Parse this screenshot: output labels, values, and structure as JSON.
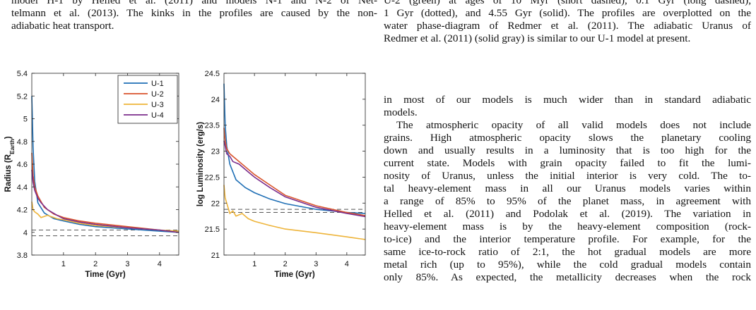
{
  "caption_left": {
    "lines": [
      "model H-1 by Helled et al. (2011) and models N-1 and N-2 of Net-",
      "telmann et al. (2013). The kinks in the profiles are caused by the non-",
      "adiabatic heat transport."
    ]
  },
  "caption_right": {
    "lines": [
      "U-2 (green) at ages of 10 Myr (short dashed), 0.1 Gyr (long dashed),",
      "1 Gyr (dotted), and 4.55 Gyr (solid). The profiles are overplotted on the",
      "water phase-diagram of Redmer et al. (2011). The adiabatic Uranus of",
      "Redmer et al. (2011) (solid gray) is similar to our U-1 model at present."
    ]
  },
  "body_right": {
    "lines": [
      "in most of our models is much wider than in standard adiabatic",
      "models.",
      "The atmospheric opacity of all valid models does not include",
      "grains. High atmospheric opacity slows the planetary cooling",
      "down and usually results in a luminosity that is too high for the",
      "current state. Models with grain opacity failed to fit the lumi-",
      "nosity of Uranus, unless the initial interior is very cold. The to-",
      "tal heavy-element mass in all our Uranus models varies within",
      "a range of 85% to 95% of the planet mass, in agreement with",
      "Helled et al. (2011) and Podolak et al. (2019). The variation in",
      "heavy-element mass is by the heavy-element composition (rock-",
      "to-ice) and the interior temperature profile. For example, for the",
      "same ice-to-rock ratio of 2:1, the hot gradual models are more",
      "metal rich (up to 95%), while the cold gradual models contain",
      "only 85%. As expected, the metallicity decreases when the rock"
    ]
  },
  "colors": {
    "U-1": "#1f6fb5",
    "U-2": "#d9532b",
    "U-3": "#eeb43a",
    "U-4": "#7b2d8c",
    "reference": "#555555"
  },
  "chart_data": [
    {
      "type": "line",
      "xlabel": "Time (Gyr)",
      "ylabel_main": "Radius (R",
      "ylabel_sub": "Earth",
      "ylabel_close": ")",
      "xlim": [
        0.01,
        4.6
      ],
      "ylim": [
        3.8,
        5.4
      ],
      "xticks": [
        "1",
        "2",
        "3",
        "4"
      ],
      "xtick_values": [
        1,
        2,
        3,
        4
      ],
      "yticks": [
        "3.8",
        "4",
        "4.2",
        "4.4",
        "4.6",
        "4.8",
        "5",
        "5.2",
        "5.4"
      ],
      "ytick_values": [
        3.8,
        4.0,
        4.2,
        4.4,
        4.6,
        4.8,
        5.0,
        5.2,
        5.4
      ],
      "legend": "top-right",
      "reference_lines": [
        4.02,
        3.97
      ],
      "series": [
        {
          "name": "U-1",
          "x": [
            0.01,
            0.05,
            0.1,
            0.2,
            0.4,
            0.7,
            1.0,
            1.5,
            2.0,
            3.0,
            4.0,
            4.6
          ],
          "y": [
            5.2,
            4.75,
            4.45,
            4.26,
            4.17,
            4.12,
            4.1,
            4.07,
            4.05,
            4.03,
            4.01,
            4.0
          ]
        },
        {
          "name": "U-2",
          "x": [
            0.01,
            0.05,
            0.1,
            0.2,
            0.4,
            0.7,
            1.0,
            1.5,
            2.0,
            3.0,
            4.0,
            4.6
          ],
          "y": [
            4.7,
            4.5,
            4.4,
            4.32,
            4.22,
            4.16,
            4.13,
            4.1,
            4.08,
            4.05,
            4.02,
            4.0
          ]
        },
        {
          "name": "U-3",
          "x": [
            0.01,
            0.05,
            0.1,
            0.2,
            0.3,
            0.5,
            0.8,
            1.0,
            1.5,
            2.0,
            3.0,
            4.0,
            4.6
          ],
          "y": [
            4.27,
            4.2,
            4.18,
            4.16,
            4.13,
            4.15,
            4.12,
            4.11,
            4.08,
            4.06,
            4.04,
            4.02,
            4.01
          ]
        },
        {
          "name": "U-4",
          "x": [
            0.01,
            0.05,
            0.1,
            0.2,
            0.3,
            0.5,
            0.8,
            1.0,
            1.5,
            2.0,
            3.0,
            4.0,
            4.6
          ],
          "y": [
            4.55,
            4.44,
            4.37,
            4.3,
            4.26,
            4.2,
            4.15,
            4.12,
            4.09,
            4.07,
            4.04,
            4.02,
            4.0
          ]
        }
      ]
    },
    {
      "type": "line",
      "xlabel": "Time (Gyr)",
      "ylabel": "log Luminosity (erg/s)",
      "xlim": [
        0.01,
        4.6
      ],
      "ylim": [
        21,
        24.5
      ],
      "xticks": [
        "1",
        "2",
        "3",
        "4"
      ],
      "xtick_values": [
        1,
        2,
        3,
        4
      ],
      "yticks": [
        "21",
        "21.5",
        "22",
        "22.5",
        "23",
        "23.5",
        "24",
        "24.5"
      ],
      "ytick_values": [
        21,
        21.5,
        22,
        22.5,
        23,
        23.5,
        24,
        24.5
      ],
      "reference_lines": [
        21.88,
        21.82
      ],
      "series": [
        {
          "name": "U-1",
          "x": [
            0.01,
            0.05,
            0.1,
            0.2,
            0.4,
            0.7,
            1.0,
            1.5,
            2.0,
            3.0,
            4.0,
            4.6
          ],
          "y": [
            24.3,
            23.5,
            23.1,
            22.75,
            22.45,
            22.3,
            22.2,
            22.08,
            21.99,
            21.88,
            21.82,
            21.8
          ]
        },
        {
          "name": "U-2",
          "x": [
            0.01,
            0.05,
            0.1,
            0.2,
            0.4,
            0.7,
            1.0,
            1.5,
            2.0,
            3.0,
            4.0,
            4.6
          ],
          "y": [
            23.45,
            23.2,
            23.05,
            22.95,
            22.85,
            22.7,
            22.55,
            22.35,
            22.15,
            21.95,
            21.82,
            21.76
          ]
        },
        {
          "name": "U-3",
          "x": [
            0.01,
            0.05,
            0.1,
            0.2,
            0.3,
            0.4,
            0.6,
            0.8,
            1.0,
            1.5,
            2.0,
            3.0,
            4.0,
            4.6
          ],
          "y": [
            22.35,
            22.1,
            22.0,
            21.8,
            21.85,
            21.75,
            21.8,
            21.7,
            21.65,
            21.57,
            21.5,
            21.43,
            21.35,
            21.3
          ]
        },
        {
          "name": "U-4",
          "x": [
            0.01,
            0.05,
            0.1,
            0.2,
            0.3,
            0.5,
            0.8,
            1.0,
            1.5,
            2.0,
            3.0,
            4.0,
            4.6
          ],
          "y": [
            23.2,
            23.1,
            22.95,
            22.9,
            22.8,
            22.75,
            22.6,
            22.5,
            22.3,
            22.12,
            21.92,
            21.8,
            21.74
          ]
        }
      ]
    }
  ]
}
